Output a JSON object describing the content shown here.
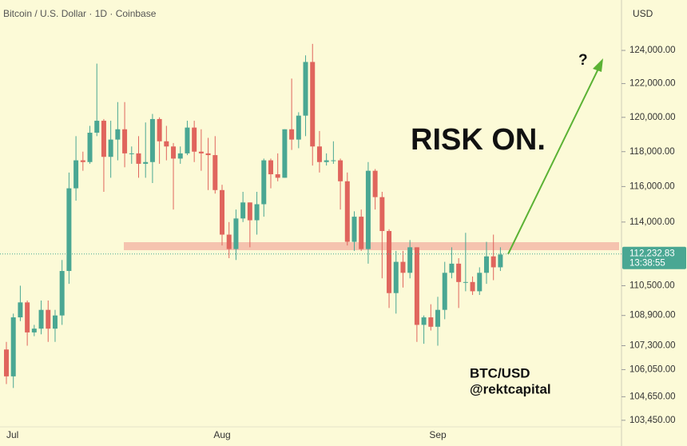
{
  "chart_data": {
    "type": "candlestick",
    "title": "Bitcoin / U.S. Dollar · 1D · Coinbase",
    "y_axis_label": "USD",
    "log_scale": true,
    "up_color": "#4aa793",
    "down_color": "#e0655d",
    "categories": [
      "Jul",
      null,
      null,
      null,
      null,
      null,
      null,
      null,
      null,
      null,
      null,
      null,
      null,
      null,
      null,
      null,
      null,
      null,
      null,
      null,
      null,
      null,
      null,
      null,
      null,
      null,
      null,
      null,
      null,
      null,
      null,
      "Aug",
      null,
      null,
      null,
      null,
      null,
      null,
      null,
      null,
      null,
      null,
      null,
      null,
      null,
      null,
      null,
      null,
      null,
      null,
      null,
      null,
      null,
      null,
      null,
      null,
      null,
      null,
      null,
      null,
      null,
      null,
      "Sep",
      null,
      null,
      null,
      null,
      null,
      null,
      null,
      null,
      null
    ],
    "open": [
      107100,
      105700,
      108800,
      109600,
      108000,
      108200,
      109200,
      108200,
      108900,
      111300,
      115900,
      117500,
      117400,
      119100,
      119800,
      117700,
      118700,
      119300,
      117900,
      117900,
      117300,
      117400,
      119900,
      118600,
      118300,
      117600,
      117900,
      119400,
      118000,
      117900,
      117800,
      115800,
      113300,
      112500,
      114200,
      115100,
      114100,
      115000,
      117500,
      116700,
      116500,
      119300,
      118700,
      120100,
      123300,
      118300,
      117400,
      117500,
      117500,
      116300,
      112900,
      114300,
      112500,
      116900,
      115400,
      113500,
      110100,
      111800,
      111200,
      112600,
      108400,
      108800,
      108300,
      109200,
      111200,
      111700,
      110700,
      110700,
      110200,
      111200,
      112100,
      111500
    ],
    "high": [
      107500,
      109000,
      110500,
      109700,
      108400,
      109700,
      109700,
      109200,
      111900,
      116800,
      118900,
      118000,
      119500,
      123200,
      119900,
      119800,
      120900,
      120900,
      118300,
      118900,
      119700,
      120200,
      120000,
      119500,
      118500,
      118300,
      119800,
      119800,
      119300,
      118800,
      118900,
      116100,
      114000,
      114700,
      115700,
      115100,
      115700,
      117600,
      117600,
      117900,
      119300,
      122300,
      120300,
      123700,
      124400,
      119200,
      117900,
      118600,
      117600,
      116800,
      114600,
      114700,
      117400,
      117000,
      115700,
      113600,
      112400,
      112400,
      113000,
      112600,
      108900,
      109500,
      109900,
      111800,
      112600,
      112000,
      113400,
      111000,
      111500,
      112900,
      113300,
      112600
    ],
    "low": [
      105300,
      105100,
      108600,
      107300,
      107800,
      107900,
      107500,
      107500,
      108400,
      110600,
      115200,
      116900,
      117300,
      118900,
      115700,
      116500,
      117500,
      117100,
      117300,
      116500,
      116500,
      116200,
      117300,
      117500,
      114700,
      117300,
      117800,
      117400,
      116900,
      115800,
      115600,
      112700,
      112000,
      111900,
      114000,
      112600,
      113300,
      114300,
      115900,
      116300,
      116500,
      118100,
      118200,
      118900,
      117200,
      116800,
      117200,
      117300,
      114700,
      112700,
      112400,
      112400,
      111700,
      114700,
      110900,
      109300,
      109000,
      110400,
      110900,
      107500,
      107400,
      108100,
      107300,
      108700,
      110900,
      109300,
      110200,
      110000,
      110000,
      110600,
      110800,
      111300
    ],
    "close": [
      105700,
      108800,
      109600,
      108000,
      108200,
      109200,
      108200,
      108900,
      111300,
      115900,
      117500,
      117400,
      119100,
      119800,
      117700,
      118700,
      119300,
      117900,
      117900,
      117300,
      117400,
      119900,
      118600,
      118300,
      117600,
      117900,
      119400,
      118000,
      117900,
      117800,
      115800,
      113300,
      112500,
      114200,
      115100,
      114100,
      115000,
      117500,
      116700,
      116500,
      119300,
      118700,
      120100,
      123300,
      118300,
      117400,
      117500,
      117500,
      116300,
      112900,
      114300,
      112500,
      116900,
      115400,
      113500,
      110100,
      111800,
      111200,
      112600,
      108400,
      108800,
      108300,
      109200,
      111200,
      111700,
      110700,
      110700,
      110200,
      111200,
      112100,
      111500,
      112200
    ],
    "ylim": [
      103200,
      127100
    ],
    "yticks": [
      {
        "value": 103450,
        "label": "103,450.00"
      },
      {
        "value": 104650,
        "label": "104,650.00"
      },
      {
        "value": 106050,
        "label": "106,050.00"
      },
      {
        "value": 107300,
        "label": "107,300.00"
      },
      {
        "value": 108900,
        "label": "108,900.00"
      },
      {
        "value": 110500,
        "label": "110,500.00"
      },
      {
        "value": 114000,
        "label": "114,000.00"
      },
      {
        "value": 116000,
        "label": "116,000.00"
      },
      {
        "value": 118000,
        "label": "118,000.00"
      },
      {
        "value": 120000,
        "label": "120,000.00"
      },
      {
        "value": 122000,
        "label": "122,000.00"
      },
      {
        "value": 124000,
        "label": "124,000.00"
      }
    ],
    "last_price": {
      "value": 112232.83,
      "label": "112,232.83"
    },
    "last_time": "13:38:55",
    "annotations": [
      "RISK ON.",
      "?",
      "BTC/USD",
      "@rektcapital"
    ]
  }
}
